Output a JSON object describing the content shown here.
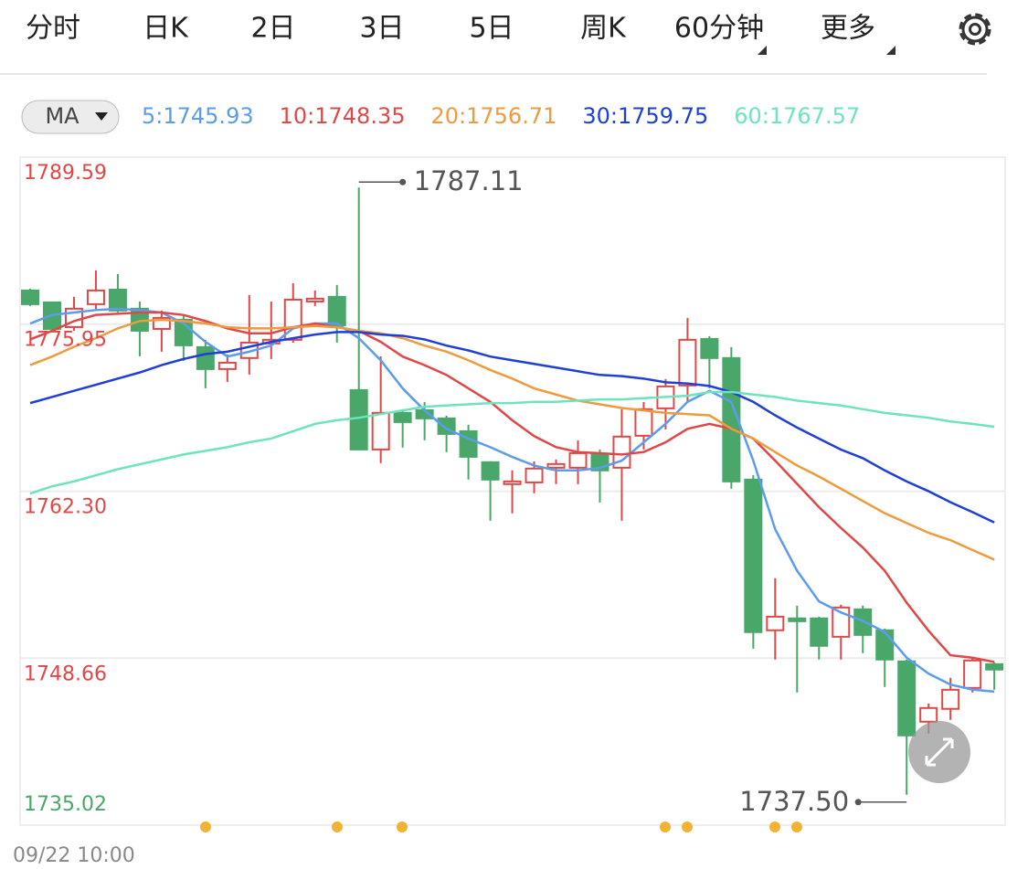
{
  "ui": {
    "tabs": [
      "分时",
      "日K",
      "2日",
      "3日",
      "5日",
      "周K",
      "60分钟",
      "更多"
    ],
    "active_tab": 6,
    "indicator": "MA"
  },
  "chart_data": {
    "type": "candlestick",
    "categories": [
      "09/22 10:00",
      null,
      null,
      null,
      null,
      null,
      null,
      null,
      null,
      null,
      null,
      null,
      null,
      null,
      null,
      null,
      null,
      null,
      null,
      null,
      null,
      null,
      null,
      null,
      null,
      null,
      null,
      null,
      null,
      null,
      null,
      null,
      null,
      null,
      null,
      null,
      null,
      null,
      null,
      null,
      null,
      null,
      null,
      null,
      null
    ],
    "open": [
      1778.7,
      1777.73,
      1775.71,
      1777.58,
      1778.77,
      1777.21,
      1775.56,
      1776.31,
      1774.07,
      1772.28,
      1773.18,
      1774.37,
      1774.67,
      1777.8,
      1778.18,
      1770.56,
      1765.71,
      1768.7,
      1768.92,
      1768.25,
      1767.2,
      1764.67,
      1762.88,
      1763.02,
      1764.22,
      1764.22,
      1765.34,
      1764.22,
      1766.83,
      1769.07,
      1770.94,
      1774.74,
      1773.18,
      1763.25,
      1750.94,
      1751.91,
      1751.91,
      1750.41,
      1752.65,
      1750.94,
      1748.4,
      1743.47,
      1744.52,
      1746.23,
      1748.17
    ],
    "high": [
      1778.85,
      1777.73,
      1778.18,
      1780.34,
      1780.04,
      1777.8,
      1777.06,
      1776.68,
      1774.67,
      1773.47,
      1778.33,
      1777.8,
      1779.29,
      1778.7,
      1779.15,
      1787.11,
      1773.32,
      1769.0,
      1769.59,
      1768.47,
      1767.73,
      1764.74,
      1764.0,
      1764.74,
      1764.89,
      1766.46,
      1765.71,
      1769.0,
      1769.59,
      1771.46,
      1776.46,
      1774.97,
      1774.07,
      1763.62,
      1755.19,
      1752.95,
      1752.05,
      1753.02,
      1752.95,
      1751.08,
      1748.55,
      1744.96,
      1747.05,
      1748.7,
      1748.32
    ],
    "low": [
      1777.43,
      1775.41,
      1775.41,
      1777.06,
      1776.91,
      1773.32,
      1773.7,
      1772.95,
      1770.71,
      1771.23,
      1771.83,
      1773.1,
      1774.44,
      1777.43,
      1774.44,
      1765.71,
      1764.59,
      1765.86,
      1766.46,
      1765.49,
      1763.25,
      1759.89,
      1760.49,
      1762.13,
      1762.88,
      1762.88,
      1761.38,
      1759.89,
      1765.71,
      1767.35,
      1769.59,
      1770.71,
      1762.5,
      1749.44,
      1748.55,
      1745.86,
      1748.55,
      1748.55,
      1749.07,
      1746.31,
      1737.5,
      1742.5,
      1743.62,
      1745.86,
      1746.08
    ],
    "close": [
      1777.58,
      1775.56,
      1777.21,
      1778.7,
      1777.06,
      1775.41,
      1776.46,
      1774.22,
      1772.28,
      1772.8,
      1774.44,
      1774.67,
      1777.95,
      1778.03,
      1775.86,
      1765.71,
      1768.7,
      1767.95,
      1768.25,
      1766.98,
      1765.11,
      1763.25,
      1763.1,
      1764.15,
      1764.52,
      1765.41,
      1764.0,
      1766.76,
      1769.0,
      1770.86,
      1774.67,
      1773.18,
      1763.1,
      1750.79,
      1752.05,
      1751.68,
      1749.67,
      1752.8,
      1750.56,
      1748.55,
      1742.35,
      1744.59,
      1746.08,
      1748.47,
      1747.73
    ],
    "up_color": "#e04848",
    "down_color": "#4aa76a",
    "ma_series": [
      {
        "name": "5:1745.93",
        "color": "#5b9cec",
        "values": [
          1776.0,
          1776.7,
          1776.9,
          1777.1,
          1777.2,
          1777.1,
          1776.9,
          1776.0,
          1774.5,
          1773.3,
          1773.7,
          1774.2,
          1775.6,
          1776.0,
          1776.0,
          1774.8,
          1773.0,
          1770.7,
          1768.9,
          1767.4,
          1766.6,
          1765.9,
          1765.1,
          1764.4,
          1764.0,
          1764.0,
          1764.2,
          1764.8,
          1766.3,
          1767.8,
          1769.6,
          1770.5,
          1769.6,
          1764.8,
          1759.2,
          1755.8,
          1753.3,
          1752.4,
          1751.7,
          1750.8,
          1748.7,
          1747.4,
          1746.5,
          1746.1,
          1745.93
        ]
      },
      {
        "name": "10:1748.35",
        "color": "#e04848",
        "values": [
          1774.7,
          1775.4,
          1776.2,
          1776.7,
          1776.8,
          1776.9,
          1776.9,
          1776.7,
          1776.2,
          1775.6,
          1775.2,
          1775.2,
          1775.7,
          1776.0,
          1775.7,
          1775.4,
          1774.5,
          1773.3,
          1772.6,
          1771.8,
          1770.7,
          1769.6,
          1768.1,
          1766.8,
          1765.9,
          1765.5,
          1765.4,
          1765.3,
          1765.5,
          1766.3,
          1767.4,
          1767.8,
          1767.4,
          1766.6,
          1764.8,
          1762.9,
          1761.0,
          1759.3,
          1757.7,
          1755.8,
          1753.2,
          1750.9,
          1748.9,
          1748.7,
          1748.35
        ]
      },
      {
        "name": "20:1756.71",
        "color": "#ef9a3c",
        "values": [
          1772.6,
          1773.3,
          1774.1,
          1774.8,
          1775.6,
          1776.2,
          1776.3,
          1776.2,
          1776.0,
          1775.7,
          1775.6,
          1775.6,
          1775.7,
          1775.8,
          1775.7,
          1775.4,
          1775.2,
          1774.8,
          1774.2,
          1773.7,
          1773.0,
          1772.2,
          1771.5,
          1770.7,
          1770.2,
          1769.7,
          1769.4,
          1769.1,
          1768.9,
          1768.7,
          1768.6,
          1768.5,
          1767.4,
          1766.6,
          1765.5,
          1764.4,
          1763.5,
          1762.5,
          1761.5,
          1760.5,
          1759.7,
          1758.9,
          1758.3,
          1757.5,
          1756.71
        ]
      },
      {
        "name": "30:1759.75",
        "color": "#1f3fd6",
        "values": [
          1769.5,
          1770.0,
          1770.5,
          1771.0,
          1771.5,
          1772.0,
          1772.6,
          1773.1,
          1773.5,
          1773.7,
          1774.1,
          1774.5,
          1774.8,
          1775.1,
          1775.3,
          1775.3,
          1775.1,
          1775.0,
          1774.7,
          1774.2,
          1773.8,
          1773.3,
          1773.0,
          1772.7,
          1772.4,
          1772.1,
          1771.8,
          1771.7,
          1771.5,
          1771.2,
          1771.1,
          1770.9,
          1770.4,
          1769.6,
          1768.5,
          1767.5,
          1766.6,
          1765.7,
          1765.0,
          1764.0,
          1763.1,
          1762.3,
          1761.4,
          1760.6,
          1759.75
        ]
      },
      {
        "name": "60:1767.57",
        "color": "#6ee3bf",
        "values": [
          1762.1,
          1762.7,
          1763.1,
          1763.6,
          1764.1,
          1764.5,
          1764.9,
          1765.3,
          1765.6,
          1765.9,
          1766.3,
          1766.6,
          1767.2,
          1767.8,
          1768.1,
          1768.3,
          1768.6,
          1768.9,
          1769.2,
          1769.3,
          1769.4,
          1769.5,
          1769.5,
          1769.6,
          1769.6,
          1769.7,
          1769.8,
          1769.8,
          1769.9,
          1770.0,
          1770.1,
          1770.4,
          1770.4,
          1770.2,
          1770.0,
          1769.7,
          1769.5,
          1769.3,
          1769.0,
          1768.7,
          1768.5,
          1768.3,
          1768.0,
          1767.8,
          1767.57
        ]
      }
    ],
    "ylim": [
      1735.02,
      1789.59
    ],
    "yticks": [
      1735.02,
      1748.66,
      {
        "value": 1762.3,
        "label": "1762.30"
      },
      1775.95,
      1789.59
    ],
    "grid": true,
    "annotations": {
      "high": 1787.11,
      "low": {
        "value": 1737.5,
        "label": "1737.50"
      }
    }
  }
}
